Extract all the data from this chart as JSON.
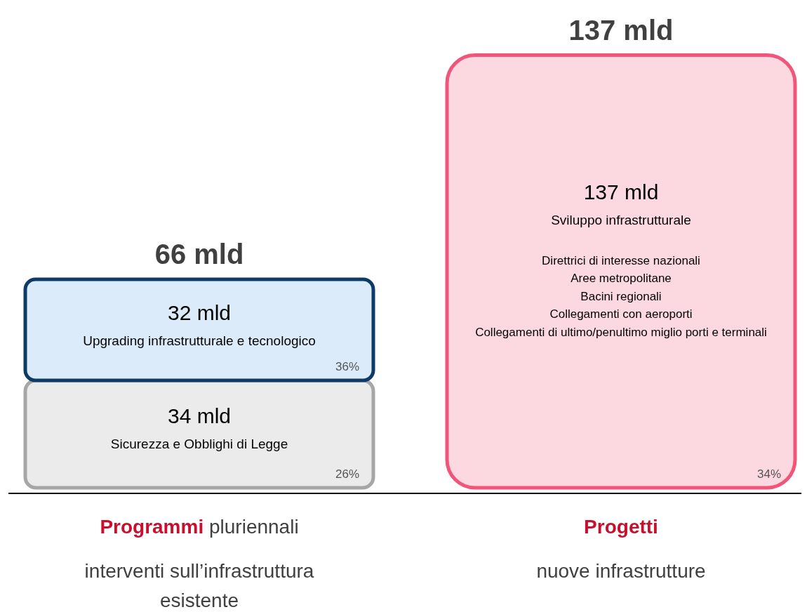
{
  "chart_data": {
    "type": "bar",
    "stacked": true,
    "categories": [
      "Programmi pluriennali",
      "Progetti"
    ],
    "series": [
      {
        "name": "Sicurezza e Obblighi di Legge",
        "color": "#a6a6a6",
        "values": [
          34,
          null
        ],
        "value_labels": [
          "34 mld",
          null
        ]
      },
      {
        "name": "Upgrading infrastrutturale e tecnologico",
        "color": "#0d3a66",
        "values": [
          32,
          null
        ],
        "value_labels": [
          "32 mld",
          null
        ]
      },
      {
        "name": "Sviluppo infrastrutturale",
        "color": "#f2557a",
        "values": [
          null,
          137
        ],
        "value_labels": [
          null,
          "137 mld"
        ]
      }
    ],
    "totals": [
      "66 mld",
      "137 mld"
    ],
    "annotations": [
      "26%",
      "36%",
      "34%",
      "Direttrici di interesse nazionali",
      "Aree metropolitane",
      "Bacini regionali",
      "Collegamenti con aeroporti",
      "Collegamenti di ultimo/penultimo miglio porti e terminali",
      "interventi sull’infrastruttura esistente",
      "nuove infrastrutture"
    ]
  }
}
